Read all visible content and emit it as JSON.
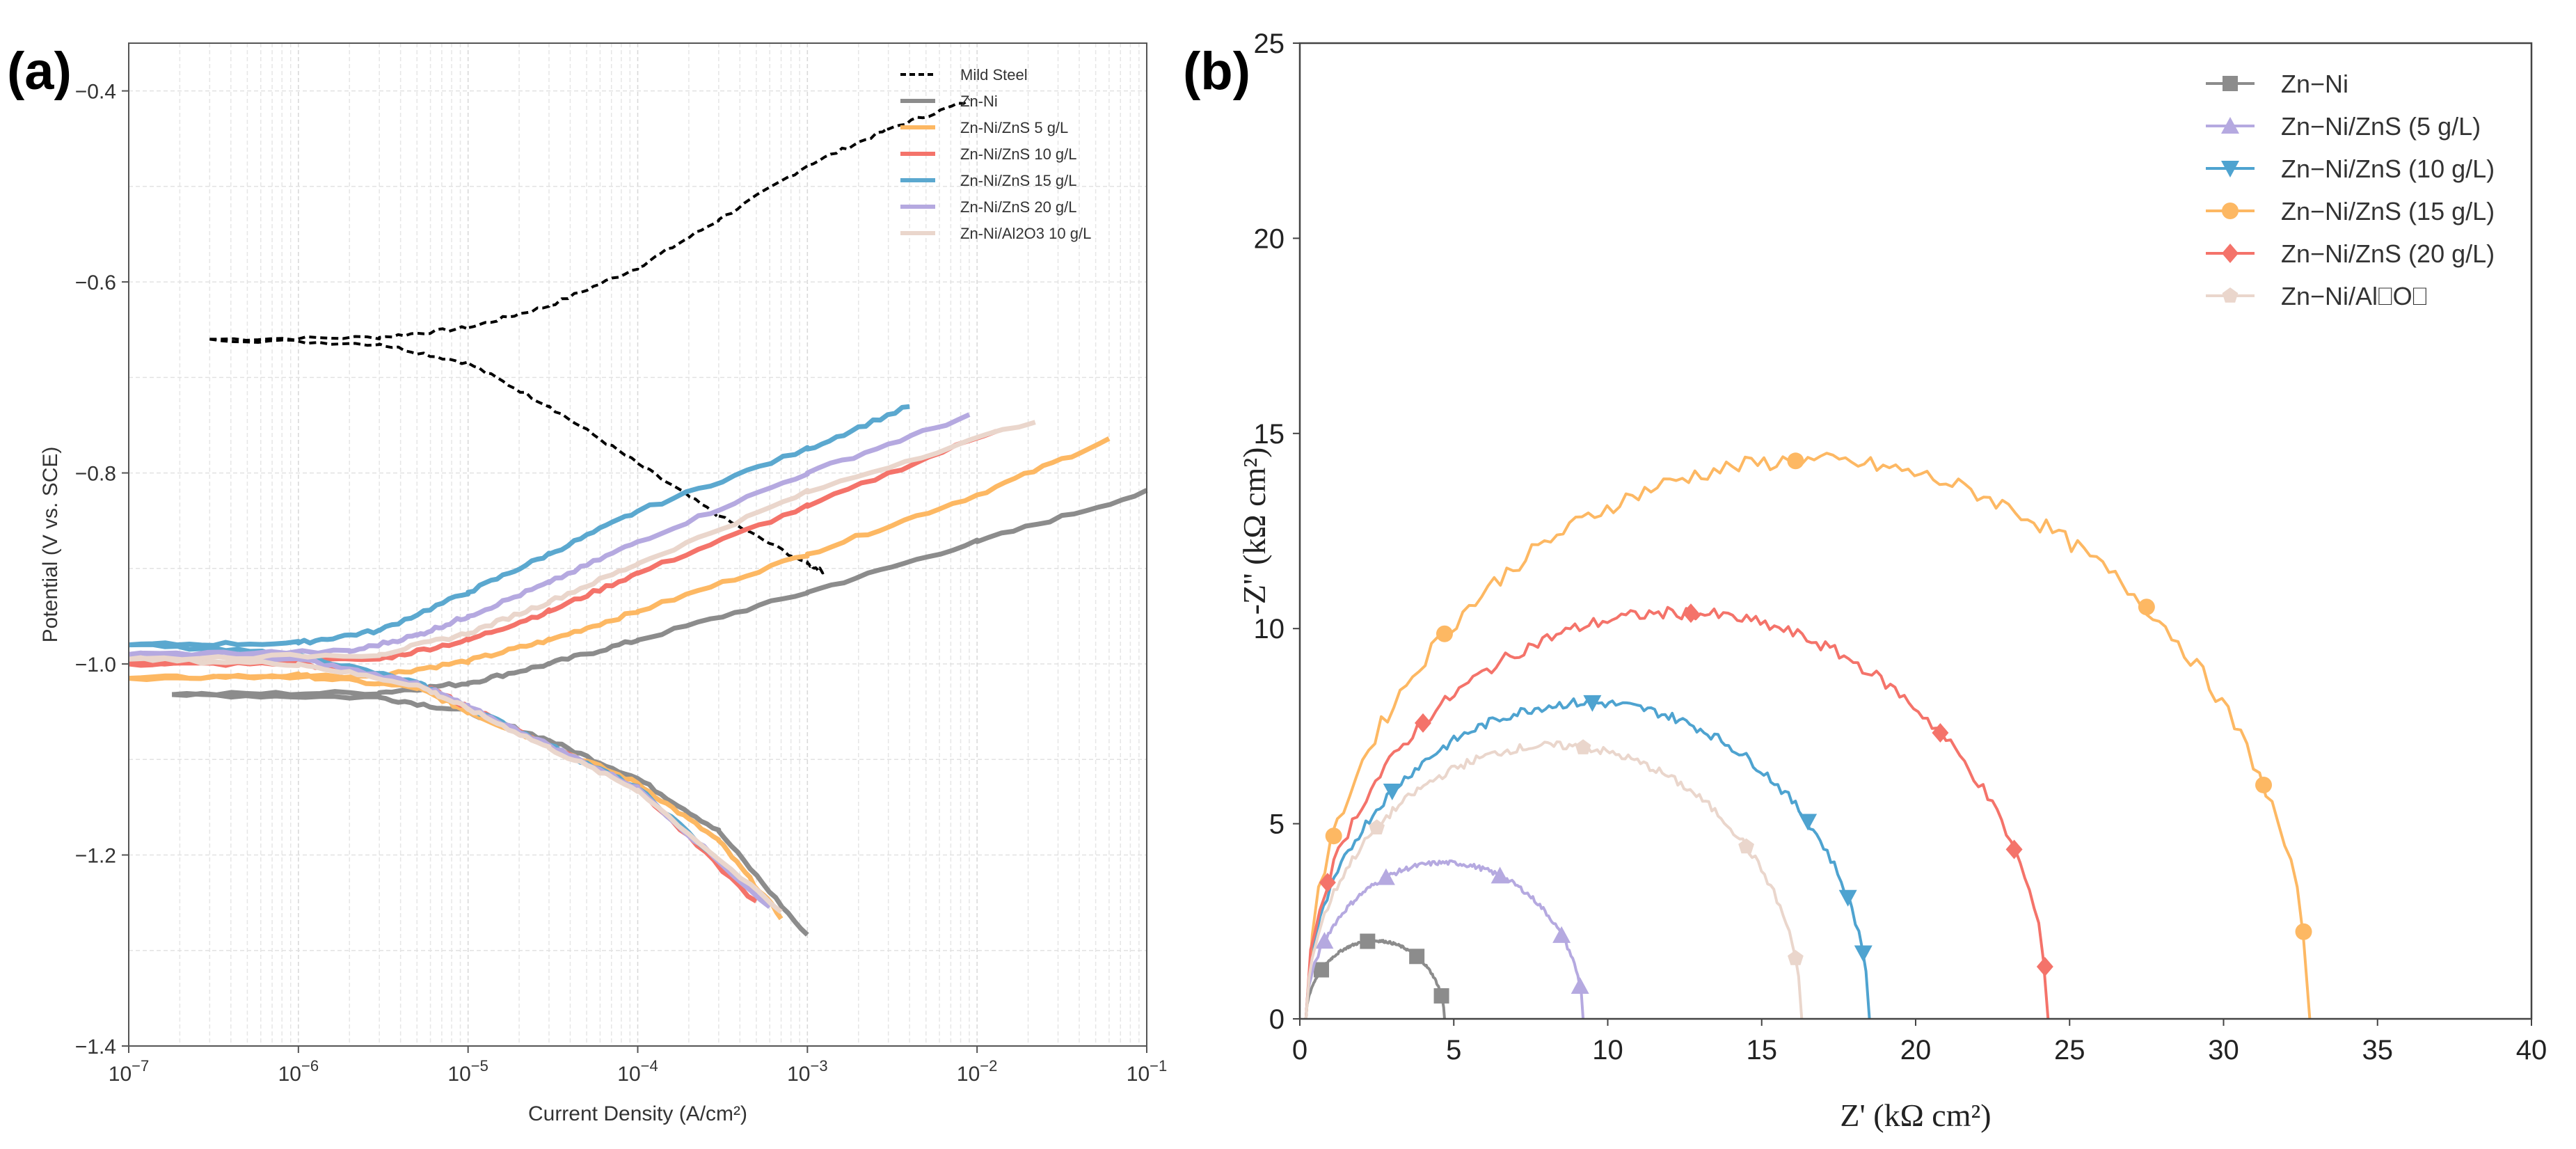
{
  "chart_data": [
    {
      "panel_label": "(a)",
      "type": "line",
      "xscale": "log",
      "xlabel": "Current Density (A/cm²)",
      "ylabel": "Potential (V vs. SCE)",
      "xlim": [
        1e-07,
        0.1
      ],
      "ylim": [
        -1.4,
        -0.35
      ],
      "x_ticks": [
        1e-07,
        1e-06,
        1e-05,
        0.0001,
        0.001,
        0.01,
        0.1
      ],
      "x_tick_labels": [
        {
          "base": "10",
          "exp": "−7"
        },
        {
          "base": "10",
          "exp": "−6"
        },
        {
          "base": "10",
          "exp": "−5"
        },
        {
          "base": "10",
          "exp": "−4"
        },
        {
          "base": "10",
          "exp": "−3"
        },
        {
          "base": "10",
          "exp": "−2"
        },
        {
          "base": "10",
          "exp": "−1"
        }
      ],
      "y_ticks": [
        -1.4,
        -1.2,
        -1.0,
        -0.8,
        -0.6,
        -0.4
      ],
      "y_tick_labels": [
        "−1.4",
        "−1.2",
        "−1.0",
        "−0.8",
        "−0.6",
        "−0.4"
      ],
      "grid": true,
      "legend_position": "top-right",
      "series": [
        {
          "name": "Mild Steel",
          "color": "#000000",
          "dashed": true,
          "ecorr": -0.66,
          "icorr": 3e-07,
          "anodic": [
            [
              3e-07,
              -0.66
            ],
            [
              3e-06,
              -0.658
            ],
            [
              1e-05,
              -0.648
            ],
            [
              3e-05,
              -0.625
            ],
            [
              0.0001,
              -0.585
            ],
            [
              0.0003,
              -0.535
            ],
            [
              0.001,
              -0.478
            ],
            [
              0.003,
              -0.44
            ],
            [
              0.009,
              -0.41
            ]
          ],
          "cathodic": [
            [
              3e-07,
              -0.66
            ],
            [
              3e-06,
              -0.665
            ],
            [
              1e-05,
              -0.685
            ],
            [
              3e-05,
              -0.73
            ],
            [
              0.0001,
              -0.79
            ],
            [
              0.0003,
              -0.845
            ],
            [
              0.001,
              -0.895
            ],
            [
              0.0013,
              -0.905
            ]
          ]
        },
        {
          "name": "Zn-Ni",
          "color": "#8c8c8c",
          "dashed": false,
          "ecorr": -1.032,
          "icorr": 1.8e-07,
          "anodic": [
            [
              1.8e-07,
              -1.032
            ],
            [
              3e-06,
              -1.03
            ],
            [
              1e-05,
              -1.02
            ],
            [
              3e-05,
              -1.0
            ],
            [
              0.0001,
              -0.975
            ],
            [
              0.001,
              -0.925
            ],
            [
              0.01,
              -0.872
            ],
            [
              0.1,
              -0.82
            ]
          ],
          "cathodic": [
            [
              1.8e-07,
              -1.032
            ],
            [
              3e-06,
              -1.035
            ],
            [
              1e-05,
              -1.05
            ],
            [
              3e-05,
              -1.08
            ],
            [
              0.0001,
              -1.12
            ],
            [
              0.0003,
              -1.175
            ],
            [
              0.001,
              -1.285
            ]
          ]
        },
        {
          "name": "Zn-Ni/ZnS 5 g/L",
          "color": "#fdb863",
          "dashed": false,
          "ecorr": -1.015,
          "icorr": 1e-07,
          "anodic": [
            [
              1e-07,
              -1.015
            ],
            [
              3e-06,
              -1.012
            ],
            [
              1e-05,
              -0.997
            ],
            [
              3e-05,
              -0.975
            ],
            [
              0.0001,
              -0.945
            ],
            [
              0.001,
              -0.885
            ],
            [
              0.01,
              -0.823
            ],
            [
              0.06,
              -0.765
            ]
          ],
          "cathodic": [
            [
              1e-07,
              -1.015
            ],
            [
              1e-06,
              -1.012
            ],
            [
              5e-06,
              -1.025
            ],
            [
              1e-05,
              -1.05
            ],
            [
              3e-05,
              -1.085
            ],
            [
              0.0001,
              -1.125
            ],
            [
              0.0003,
              -1.185
            ],
            [
              0.0007,
              -1.265
            ]
          ]
        },
        {
          "name": "Zn-Ni/ZnS 10 g/L",
          "color": "#f4736a",
          "dashed": false,
          "ecorr": -1.0,
          "icorr": 1e-07,
          "anodic": [
            [
              1e-07,
              -1.0
            ],
            [
              3e-06,
              -0.995
            ],
            [
              1e-05,
              -0.975
            ],
            [
              3e-05,
              -0.945
            ],
            [
              0.0001,
              -0.905
            ],
            [
              0.001,
              -0.835
            ],
            [
              0.013,
              -0.755
            ]
          ],
          "cathodic": [
            [
              1e-07,
              -1.0
            ],
            [
              1e-06,
              -1.0
            ],
            [
              5e-06,
              -1.02
            ],
            [
              1e-05,
              -1.045
            ],
            [
              3e-05,
              -1.085
            ],
            [
              0.0001,
              -1.13
            ],
            [
              0.0005,
              -1.25
            ]
          ]
        },
        {
          "name": "Zn-Ni/ZnS 15 g/L",
          "color": "#5ba8cf",
          "dashed": false,
          "ecorr": -0.98,
          "icorr": 1e-07,
          "anodic": [
            [
              1e-07,
              -0.98
            ],
            [
              1e-06,
              -0.978
            ],
            [
              3e-06,
              -0.965
            ],
            [
              1e-05,
              -0.925
            ],
            [
              3e-05,
              -0.885
            ],
            [
              0.0001,
              -0.84
            ],
            [
              0.001,
              -0.775
            ],
            [
              0.004,
              -0.73
            ]
          ],
          "cathodic": [
            [
              1e-07,
              -0.98
            ],
            [
              1e-06,
              -0.99
            ],
            [
              5e-06,
              -1.02
            ],
            [
              1e-05,
              -1.045
            ],
            [
              3e-05,
              -1.085
            ],
            [
              0.0001,
              -1.13
            ],
            [
              0.0005,
              -1.24
            ]
          ]
        },
        {
          "name": "Zn-Ni/ZnS 20 g/L",
          "color": "#b5a9e0",
          "dashed": false,
          "ecorr": -0.99,
          "icorr": 1e-07,
          "anodic": [
            [
              1e-07,
              -0.99
            ],
            [
              2e-06,
              -0.987
            ],
            [
              5e-06,
              -0.97
            ],
            [
              1e-05,
              -0.95
            ],
            [
              3e-05,
              -0.915
            ],
            [
              0.0001,
              -0.872
            ],
            [
              0.001,
              -0.8
            ],
            [
              0.009,
              -0.74
            ]
          ],
          "cathodic": [
            [
              1e-07,
              -0.99
            ],
            [
              1e-06,
              -0.995
            ],
            [
              5e-06,
              -1.02
            ],
            [
              1e-05,
              -1.045
            ],
            [
              3e-05,
              -1.085
            ],
            [
              0.0001,
              -1.13
            ],
            [
              0.0006,
              -1.255
            ]
          ]
        },
        {
          "name": "Zn-Ni/Al2O3 10 g/L",
          "color": "#ead6cc",
          "dashed": false,
          "ecorr": -0.995,
          "icorr": 1e-07,
          "anodic": [
            [
              1e-07,
              -0.995
            ],
            [
              3e-06,
              -0.99
            ],
            [
              1e-05,
              -0.968
            ],
            [
              3e-05,
              -0.935
            ],
            [
              0.0001,
              -0.895
            ],
            [
              0.001,
              -0.82
            ],
            [
              0.022,
              -0.745
            ]
          ],
          "cathodic": [
            [
              1e-07,
              -0.995
            ],
            [
              1e-06,
              -1.0
            ],
            [
              5e-06,
              -1.022
            ],
            [
              1e-05,
              -1.047
            ],
            [
              3e-05,
              -1.088
            ],
            [
              0.0001,
              -1.132
            ],
            [
              0.0007,
              -1.26
            ]
          ]
        }
      ]
    },
    {
      "panel_label": "(b)",
      "type": "line",
      "xlabel": "Z' (kΩ cm²)",
      "ylabel": "-Z'' (kΩ cm²)",
      "xlim": [
        0,
        40
      ],
      "ylim": [
        0,
        25
      ],
      "x_ticks": [
        0,
        5,
        10,
        15,
        20,
        25,
        30,
        35,
        40
      ],
      "x_tick_labels": [
        "0",
        "5",
        "10",
        "15",
        "20",
        "25",
        "30",
        "35",
        "40"
      ],
      "y_ticks": [
        0,
        5,
        10,
        15,
        20,
        25
      ],
      "y_tick_labels": [
        "0",
        "5",
        "10",
        "15",
        "20",
        "25"
      ],
      "grid": false,
      "legend_position": "top-right",
      "series": [
        {
          "name": "Zn−Ni",
          "color": "#8c8c8c",
          "marker": "square",
          "r0": 0.2,
          "r1": 4.7,
          "peak": 2.0,
          "markers_x": [
            0.7,
            2.2,
            3.8,
            4.6
          ]
        },
        {
          "name": "Zn−Ni/ZnS (5 g/L)",
          "color": "#b5a9e0",
          "marker": "triangle-up",
          "r0": 0.2,
          "r1": 9.2,
          "peak": 4.0,
          "markers_x": [
            0.8,
            2.8,
            6.5,
            8.5,
            9.1
          ]
        },
        {
          "name": "Zn−Ni/ZnS (10 g/L)",
          "color": "#4ea3d0",
          "marker": "triangle-down",
          "r0": 0.2,
          "r1": 18.5,
          "peak": 8.1,
          "markers_x": [
            3.0,
            9.5,
            16.5,
            17.8,
            18.3
          ]
        },
        {
          "name": "Zn−Ni/ZnS (15 g/L)",
          "color": "#fdb863",
          "marker": "circle",
          "r0": 0.2,
          "r1": 32.8,
          "peak": 14.3,
          "markers_x": [
            1.1,
            4.7,
            16.1,
            27.5,
            31.3,
            32.6
          ]
        },
        {
          "name": "Zn−Ni/ZnS (20 g/L)",
          "color": "#f4736a",
          "marker": "diamond",
          "r0": 0.2,
          "r1": 24.3,
          "peak": 10.4,
          "markers_x": [
            0.9,
            4.0,
            12.7,
            20.8,
            23.2,
            24.2
          ]
        },
        {
          "name": "Zn−Ni/Al⎕O⎕",
          "color": "#ead6cc",
          "marker": "pentagon",
          "r0": 0.2,
          "r1": 16.3,
          "peak": 7.0,
          "markers_x": [
            2.5,
            9.2,
            14.5,
            16.1
          ]
        }
      ]
    }
  ]
}
